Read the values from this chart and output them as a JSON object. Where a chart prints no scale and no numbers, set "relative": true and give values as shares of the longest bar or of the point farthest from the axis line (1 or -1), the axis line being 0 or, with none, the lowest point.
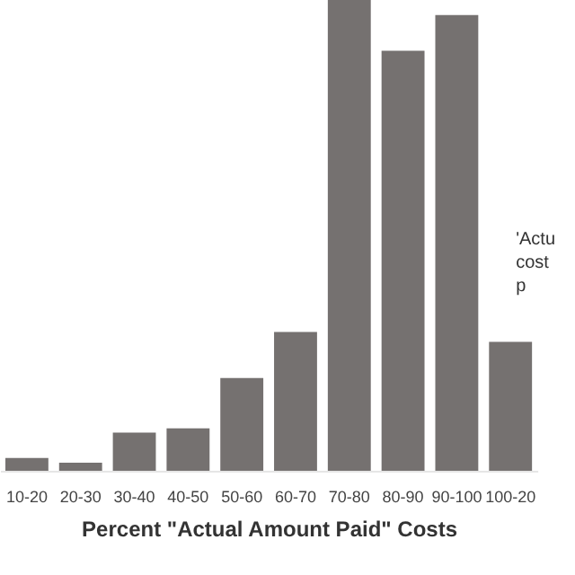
{
  "chart_data": {
    "type": "bar",
    "relative": true,
    "xlabel": "Percent \"Actual Amount Paid\" Costs",
    "categories": [
      "10-20",
      "20-30",
      "30-40",
      "40-50",
      "50-60",
      "60-70",
      "70-80",
      "80-90",
      "90-100",
      "100-20"
    ],
    "values": [
      0.027,
      0.017,
      0.081,
      0.09,
      0.197,
      0.295,
      1,
      0.892,
      0.968,
      0.274
    ],
    "color": "#757170",
    "annotations": [
      "'Actu\ncost\np"
    ]
  }
}
